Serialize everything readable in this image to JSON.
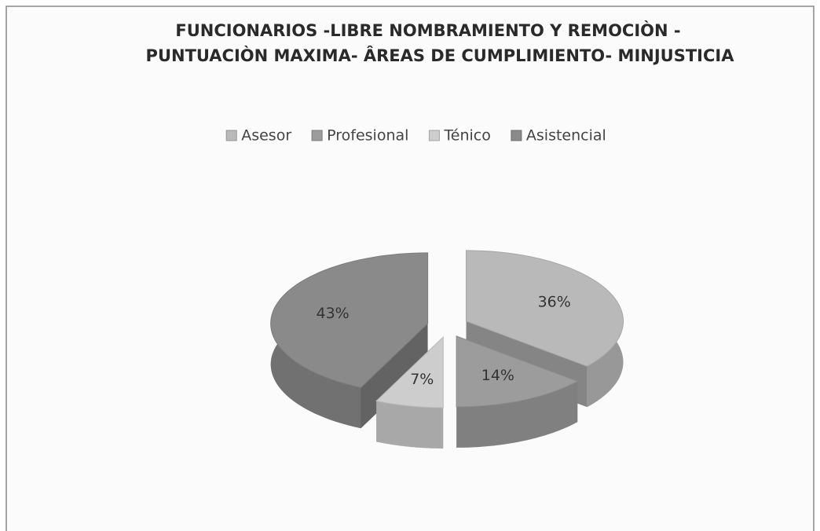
{
  "chart_data": {
    "type": "pie3d",
    "title": [
      "FUNCIONARIOS -LIBRE NOMBRAMIENTO Y REMOCIÒN -",
      "PUNTUACIÒN MAXIMA- ÂREAS DE CUMPLIMIENTO- MINJUSTICIA"
    ],
    "categories": [
      "Asesor",
      "Profesional",
      "Ténico",
      "Asistencial"
    ],
    "values": [
      36,
      14,
      7,
      43
    ],
    "value_labels": [
      "36%",
      "14%",
      "7%",
      "43%"
    ],
    "colors": [
      "#b9b9b9",
      "#9c9c9c",
      "#cdcdcd",
      "#8a8a8a"
    ],
    "legend": "top"
  }
}
